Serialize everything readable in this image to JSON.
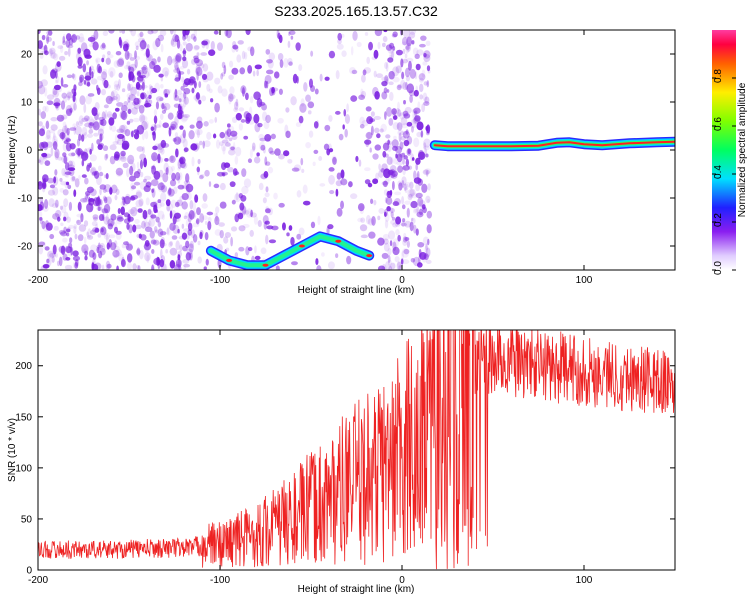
{
  "title": "S233.2025.165.13.57.C32",
  "colors": {
    "snr_line": "#ee2222",
    "speck": "#7a1ee0",
    "frame": "#000000"
  },
  "colorbar": {
    "label": "Normalized spectral amplitude",
    "ticks": [
      "0.0",
      "0.2",
      "0.4",
      "0.6",
      "0.8"
    ],
    "tick_values": [
      0.0,
      0.2,
      0.4,
      0.6,
      0.8
    ],
    "range": [
      0,
      1
    ]
  },
  "chart_data": [
    {
      "type": "heatmap",
      "xlabel": "Height of straight line (km)",
      "ylabel": "Frequency (Hz)",
      "xlim": [
        -200,
        150
      ],
      "ylim": [
        -25,
        25
      ],
      "xticks": [
        -200,
        -100,
        0,
        100
      ],
      "yticks": [
        -20,
        -10,
        0,
        10,
        20
      ],
      "xtick_labels": [
        "-200",
        "-100",
        "0",
        "100"
      ],
      "ytick_labels": [
        "-20",
        "-10",
        "0",
        "10",
        "20"
      ],
      "ridges": [
        {
          "x": [
            18,
            25,
            40,
            60,
            75,
            85,
            92,
            100,
            110,
            125,
            140,
            150
          ],
          "y": [
            1.0,
            0.8,
            0.8,
            0.8,
            0.9,
            1.5,
            1.6,
            1.2,
            1.0,
            1.4,
            1.6,
            1.7
          ]
        },
        {
          "x": [
            -105,
            -95,
            -85,
            -75,
            -65,
            -55,
            -45,
            -35,
            -25,
            -18
          ],
          "y": [
            -21,
            -23,
            -24,
            -24,
            -22,
            -20,
            -18,
            -19,
            -21,
            -22
          ]
        }
      ]
    },
    {
      "type": "line",
      "xlabel": "Height of straight line (km)",
      "ylabel": "SNR (10 * v/v)",
      "xlim": [
        -200,
        150
      ],
      "ylim": [
        0,
        235
      ],
      "xticks": [
        -200,
        -100,
        0,
        100
      ],
      "yticks": [
        0,
        50,
        100,
        150,
        200
      ],
      "xtick_labels": [
        "-200",
        "-100",
        "0",
        "100"
      ],
      "ytick_labels": [
        "0",
        "50",
        "100",
        "150",
        "200"
      ],
      "series": [
        {
          "x": [
            -200,
            -180,
            -160,
            -140,
            -120,
            -100,
            -90,
            -80,
            -70,
            -60,
            -50,
            -40,
            -30,
            -20,
            -10,
            0,
            5,
            10,
            15,
            20,
            25,
            30,
            35,
            40,
            50,
            60,
            80,
            100,
            120,
            140,
            150
          ],
          "y": [
            20,
            20,
            20,
            21,
            22,
            25,
            30,
            35,
            42,
            50,
            60,
            70,
            80,
            90,
            100,
            110,
            125,
            140,
            160,
            180,
            190,
            200,
            205,
            208,
            205,
            205,
            200,
            195,
            190,
            185,
            180
          ]
        }
      ]
    }
  ]
}
